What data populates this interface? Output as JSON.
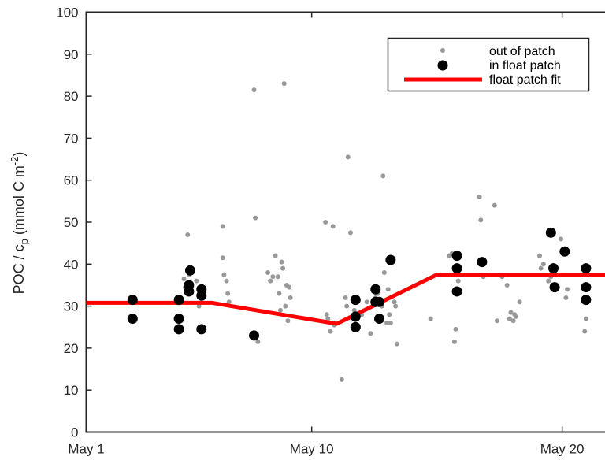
{
  "chart_data": {
    "type": "scatter",
    "title": "",
    "xlabel": "",
    "ylabel": "POC / c",
    "ylabel_sub": "p",
    "ylabel_tail": " (mmol C m",
    "ylabel_sup": "-2",
    "ylabel_close": ")",
    "xlim": [
      0,
      21.7
    ],
    "ylim": [
      0,
      100
    ],
    "x_ticks": [
      {
        "value": 0,
        "label": "May 1"
      },
      {
        "value": 9,
        "label": "May 10"
      },
      {
        "value": 19,
        "label": "May 20"
      }
    ],
    "y_ticks": [
      0,
      10,
      20,
      30,
      40,
      50,
      60,
      70,
      80,
      90,
      100
    ],
    "grid": false,
    "legend_position": "top-right",
    "colors": {
      "out_of_patch": "#999999",
      "in_float_patch": "#000000",
      "fit": "#ff0000"
    },
    "series": [
      {
        "name": "out of patch",
        "style": "small-gray-dots",
        "points": [
          [
            3.9,
            36.5
          ],
          [
            3.95,
            34.5
          ],
          [
            4.0,
            33.5
          ],
          [
            4.05,
            47
          ],
          [
            4.1,
            37.5
          ],
          [
            4.4,
            36
          ],
          [
            4.5,
            30
          ],
          [
            4.7,
            34
          ],
          [
            5.45,
            49
          ],
          [
            5.45,
            41.5
          ],
          [
            5.5,
            37.5
          ],
          [
            5.6,
            36
          ],
          [
            5.65,
            33
          ],
          [
            5.7,
            31
          ],
          [
            6.7,
            81.5
          ],
          [
            6.75,
            51
          ],
          [
            6.8,
            23
          ],
          [
            6.85,
            21.5
          ],
          [
            7.25,
            38
          ],
          [
            7.35,
            36
          ],
          [
            7.45,
            37
          ],
          [
            7.55,
            42
          ],
          [
            7.65,
            37
          ],
          [
            7.7,
            33
          ],
          [
            7.75,
            29
          ],
          [
            7.9,
            83
          ],
          [
            7.8,
            40.5
          ],
          [
            7.85,
            39
          ],
          [
            7.95,
            30
          ],
          [
            8.0,
            35
          ],
          [
            8.05,
            26.5
          ],
          [
            8.1,
            34.5
          ],
          [
            8.15,
            32
          ],
          [
            9.55,
            50
          ],
          [
            9.6,
            28
          ],
          [
            9.65,
            27
          ],
          [
            9.75,
            24
          ],
          [
            9.85,
            49
          ],
          [
            9.9,
            25.5
          ],
          [
            10.2,
            12.5
          ],
          [
            10.35,
            32
          ],
          [
            10.4,
            30
          ],
          [
            10.45,
            65.5
          ],
          [
            10.55,
            47.5
          ],
          [
            10.7,
            29
          ],
          [
            11.0,
            28
          ],
          [
            11.2,
            31
          ],
          [
            11.35,
            23.5
          ],
          [
            11.45,
            30.5
          ],
          [
            11.55,
            32
          ],
          [
            11.65,
            33
          ],
          [
            11.8,
            30
          ],
          [
            11.85,
            61
          ],
          [
            11.9,
            38
          ],
          [
            12.0,
            26
          ],
          [
            12.05,
            34
          ],
          [
            12.1,
            28
          ],
          [
            12.15,
            26
          ],
          [
            12.3,
            31
          ],
          [
            12.35,
            30
          ],
          [
            12.4,
            21
          ],
          [
            13.75,
            27
          ],
          [
            14.5,
            42
          ],
          [
            14.6,
            42.5
          ],
          [
            14.7,
            21.5
          ],
          [
            14.75,
            24.5
          ],
          [
            14.85,
            36
          ],
          [
            15.7,
            56
          ],
          [
            15.75,
            50.5
          ],
          [
            15.85,
            37
          ],
          [
            16.3,
            54
          ],
          [
            16.4,
            26.5
          ],
          [
            16.6,
            37
          ],
          [
            16.8,
            35
          ],
          [
            16.9,
            27
          ],
          [
            16.95,
            28.5
          ],
          [
            17.05,
            26.5
          ],
          [
            17.1,
            28
          ],
          [
            17.15,
            27.5
          ],
          [
            17.3,
            31
          ],
          [
            18.1,
            42
          ],
          [
            18.15,
            39
          ],
          [
            18.25,
            40
          ],
          [
            18.45,
            36
          ],
          [
            18.55,
            37
          ],
          [
            18.6,
            35
          ],
          [
            18.95,
            46
          ],
          [
            19.15,
            32
          ],
          [
            19.2,
            34
          ],
          [
            19.9,
            24
          ],
          [
            19.95,
            27
          ]
        ]
      },
      {
        "name": "in float patch",
        "style": "large-black-dots",
        "points": [
          [
            1.85,
            31.5
          ],
          [
            1.85,
            27
          ],
          [
            3.7,
            31.5
          ],
          [
            3.7,
            27
          ],
          [
            3.7,
            24.5
          ],
          [
            4.1,
            35
          ],
          [
            4.1,
            33.5
          ],
          [
            4.15,
            38.5
          ],
          [
            4.6,
            34
          ],
          [
            4.6,
            32.5
          ],
          [
            4.6,
            24.5
          ],
          [
            6.7,
            23
          ],
          [
            10.75,
            31.5
          ],
          [
            10.75,
            27.5
          ],
          [
            10.75,
            25
          ],
          [
            11.55,
            34
          ],
          [
            11.55,
            31
          ],
          [
            11.7,
            31
          ],
          [
            11.7,
            27
          ],
          [
            12.15,
            41
          ],
          [
            14.8,
            42
          ],
          [
            14.8,
            39
          ],
          [
            14.8,
            33.5
          ],
          [
            15.8,
            40.5
          ],
          [
            18.55,
            47.5
          ],
          [
            18.65,
            39
          ],
          [
            18.7,
            34.5
          ],
          [
            19.1,
            43
          ],
          [
            19.95,
            39
          ],
          [
            19.95,
            34.5
          ],
          [
            19.95,
            31.5
          ]
        ]
      },
      {
        "name": "float patch fit",
        "style": "thick-red-line",
        "points": [
          [
            0,
            30.8
          ],
          [
            5.0,
            30.8
          ],
          [
            10.0,
            25.8
          ],
          [
            14.0,
            37.5
          ],
          [
            21.7,
            37.5
          ]
        ]
      }
    ]
  }
}
